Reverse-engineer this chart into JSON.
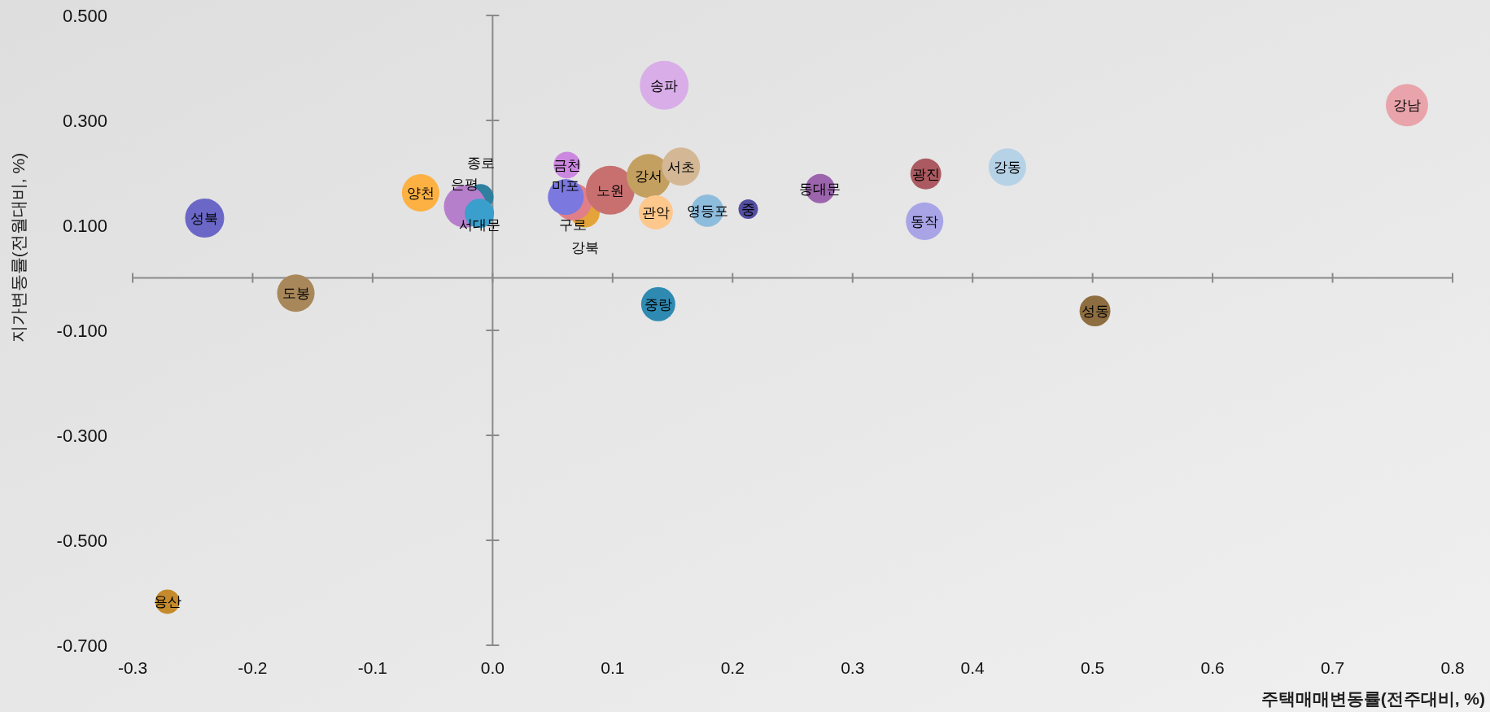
{
  "chart_data": {
    "type": "bubble",
    "xlabel": "주택매매변동률(전주대비, %)",
    "ylabel": "지가변동률(전월대비, %)",
    "xlim": [
      -0.3,
      0.8
    ],
    "ylim": [
      -0.7,
      0.5
    ],
    "xticks": [
      {
        "value": -0.3,
        "label": "-0.3"
      },
      {
        "value": -0.2,
        "label": "-0.2"
      },
      {
        "value": -0.1,
        "label": "-0.1"
      },
      {
        "value": 0,
        "label": "0.0"
      },
      {
        "value": 0.1,
        "label": "0.1"
      },
      {
        "value": 0.2,
        "label": "0.2"
      },
      {
        "value": 0.3,
        "label": "0.3"
      },
      {
        "value": 0.4,
        "label": "0.4"
      },
      {
        "value": 0.5,
        "label": "0.5"
      },
      {
        "value": 0.6,
        "label": "0.6"
      },
      {
        "value": 0.7,
        "label": "0.7"
      },
      {
        "value": 0.8,
        "label": "0.8"
      }
    ],
    "yticks": [
      {
        "value": 0.5,
        "label": "0.500"
      },
      {
        "value": 0.3,
        "label": "0.300"
      },
      {
        "value": 0.1,
        "label": "0.100"
      },
      {
        "value": -0.1,
        "label": "-0.100"
      },
      {
        "value": -0.3,
        "label": "-0.300"
      },
      {
        "value": -0.5,
        "label": "-0.500"
      },
      {
        "value": -0.7,
        "label": "-0.700"
      }
    ],
    "series": [
      {
        "name": "성북",
        "color": "#6a67c6",
        "x": [
          -0.24
        ],
        "values": [
          0.114
        ],
        "sizes": [
          0.64
        ]
      },
      {
        "name": "도봉",
        "color": "#a8885a",
        "x": [
          -0.164
        ],
        "values": [
          -0.029
        ],
        "sizes": [
          0.59
        ]
      },
      {
        "name": "양천",
        "color": "#fdb143",
        "x": [
          -0.06
        ],
        "values": [
          0.162
        ],
        "sizes": [
          0.59
        ]
      },
      {
        "name": "종로",
        "color": "#2f7f9f",
        "x": [
          -0.01
        ],
        "values": [
          0.154
        ],
        "sizes": [
          0.28
        ]
      },
      {
        "name": "은평",
        "color": "#b67fcc",
        "x": [
          -0.023
        ],
        "values": [
          0.136
        ],
        "sizes": [
          0.75
        ]
      },
      {
        "name": "서대문",
        "color": "#3a9fcc",
        "x": [
          -0.011
        ],
        "values": [
          0.123
        ],
        "sizes": [
          0.36
        ]
      },
      {
        "name": "금천",
        "color": "#cc88e0",
        "x": [
          0.062
        ],
        "values": [
          0.215
        ],
        "sizes": [
          0.3
        ]
      },
      {
        "name": "강북",
        "color": "#e5a43a",
        "x": [
          0.077
        ],
        "values": [
          0.124
        ],
        "sizes": [
          0.36
        ]
      },
      {
        "name": "구로",
        "color": "#e07f88",
        "x": [
          0.067
        ],
        "values": [
          0.145
        ],
        "sizes": [
          0.59
        ]
      },
      {
        "name": "마포",
        "color": "#7b78e0",
        "x": [
          0.061
        ],
        "values": [
          0.154
        ],
        "sizes": [
          0.54
        ]
      },
      {
        "name": "노원",
        "color": "#c87070",
        "x": [
          0.098
        ],
        "values": [
          0.167
        ],
        "sizes": [
          1
        ]
      },
      {
        "name": "강서",
        "color": "#c4a060",
        "x": [
          0.13
        ],
        "values": [
          0.194
        ],
        "sizes": [
          0.81
        ]
      },
      {
        "name": "서초",
        "color": "#d4b896",
        "x": [
          0.157
        ],
        "values": [
          0.212
        ],
        "sizes": [
          0.61
        ]
      },
      {
        "name": "관악",
        "color": "#fec78c",
        "x": [
          0.136
        ],
        "values": [
          0.125
        ],
        "sizes": [
          0.49
        ]
      },
      {
        "name": "영등포",
        "color": "#8ebcdc",
        "x": [
          0.179
        ],
        "values": [
          0.128
        ],
        "sizes": [
          0.44
        ]
      },
      {
        "name": "중",
        "color": "#524ea0",
        "x": [
          0.213
        ],
        "values": [
          0.131
        ],
        "sizes": [
          0.16
        ]
      },
      {
        "name": "송파",
        "color": "#d9aee8",
        "x": [
          0.143
        ],
        "values": [
          0.367
        ],
        "sizes": [
          1
        ]
      },
      {
        "name": "동대문",
        "color": "#9c64ac",
        "x": [
          0.273
        ],
        "values": [
          0.17
        ],
        "sizes": [
          0.36
        ]
      },
      {
        "name": "광진",
        "color": "#aa5a60",
        "x": [
          0.361
        ],
        "values": [
          0.198
        ],
        "sizes": [
          0.4
        ]
      },
      {
        "name": "강동",
        "color": "#b6d2e6",
        "x": [
          0.429
        ],
        "values": [
          0.211
        ],
        "sizes": [
          0.59
        ]
      },
      {
        "name": "동작",
        "color": "#a8a4e6",
        "x": [
          0.36
        ],
        "values": [
          0.108
        ],
        "sizes": [
          0.59
        ]
      },
      {
        "name": "강남",
        "color": "#e8a4aa",
        "x": [
          0.762
        ],
        "values": [
          0.329
        ],
        "sizes": [
          0.75
        ]
      },
      {
        "name": "성동",
        "color": "#8e6e40",
        "x": [
          0.502
        ],
        "values": [
          -0.063
        ],
        "sizes": [
          0.4
        ]
      },
      {
        "name": "중랑",
        "color": "#2f8ab2",
        "x": [
          0.138
        ],
        "values": [
          -0.05
        ],
        "sizes": [
          0.49
        ]
      },
      {
        "name": "용산",
        "color": "#c48a2c",
        "x": [
          -0.271
        ],
        "values": [
          -0.617
        ],
        "sizes": [
          0.25
        ]
      }
    ]
  }
}
